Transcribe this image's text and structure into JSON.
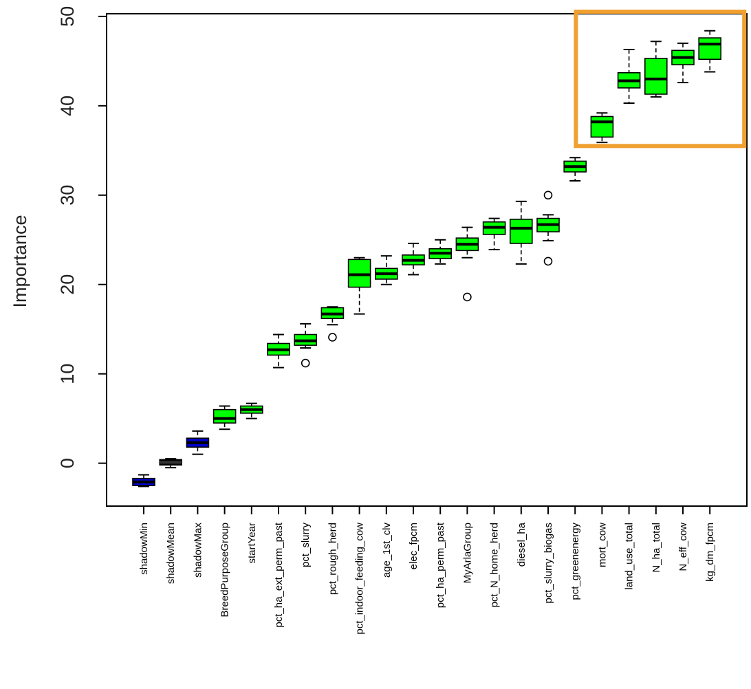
{
  "chart_data": {
    "type": "boxplot",
    "title": "",
    "xlabel": "",
    "ylabel": "Importance",
    "ylim": [
      -4.8,
      50.3
    ],
    "yticks": [
      0,
      10,
      20,
      30,
      40,
      50
    ],
    "grid": false,
    "legend": "none",
    "colors": {
      "shadow": "#0000cc",
      "shadow_mean": "#000000",
      "confirmed": "#00ff00",
      "highlight": "#f0a030"
    },
    "highlight_box": {
      "from_category": "mort_cow",
      "to_category": "kg_dm_fpcm",
      "ymin": 35.5,
      "ymax": 50.3
    },
    "categories": [
      "shadowMin",
      "shadowMean",
      "shadowMax",
      "BreedPurposeGroup",
      "startYear",
      "pct_ha_ext_perm_past",
      "pct_slurry",
      "pct_rough_herd",
      "pct_indoor_feeding_cow",
      "age_1st_clv",
      "elec_fpcm",
      "pct_ha_perm_past",
      "MyArlaGroup",
      "pct_N_home_herd",
      "diesel_ha",
      "pct_slurry_biogas",
      "pct_greenenergy",
      "mort_cow",
      "land_use_total",
      "N_ha_total",
      "N_eff_cow",
      "kg_dm_fpcm"
    ],
    "boxes": [
      {
        "category": "shadowMin",
        "min": -2.6,
        "q1": -2.5,
        "median": -2.1,
        "q3": -1.7,
        "max": -1.3,
        "outliers": [],
        "color": "#0000cc"
      },
      {
        "category": "shadowMean",
        "min": -0.5,
        "q1": -0.2,
        "median": 0.1,
        "q3": 0.4,
        "max": 0.5,
        "outliers": [],
        "color": "#000000"
      },
      {
        "category": "shadowMax",
        "min": 1.0,
        "q1": 1.8,
        "median": 2.3,
        "q3": 2.8,
        "max": 3.6,
        "outliers": [],
        "color": "#0000cc"
      },
      {
        "category": "BreedPurposeGroup",
        "min": 3.8,
        "q1": 4.5,
        "median": 5.0,
        "q3": 6.0,
        "max": 6.4,
        "outliers": [],
        "color": "#00ff00"
      },
      {
        "category": "startYear",
        "min": 5.0,
        "q1": 5.6,
        "median": 6.0,
        "q3": 6.4,
        "max": 6.7,
        "outliers": [],
        "color": "#00ff00"
      },
      {
        "category": "pct_ha_ext_perm_past",
        "min": 10.7,
        "q1": 12.1,
        "median": 12.7,
        "q3": 13.4,
        "max": 14.4,
        "outliers": [],
        "color": "#00ff00"
      },
      {
        "category": "pct_slurry",
        "min": 12.9,
        "q1": 13.2,
        "median": 13.7,
        "q3": 14.4,
        "max": 15.6,
        "outliers": [
          11.2
        ],
        "color": "#00ff00"
      },
      {
        "category": "pct_rough_herd",
        "min": 15.5,
        "q1": 16.2,
        "median": 16.7,
        "q3": 17.4,
        "max": 17.5,
        "outliers": [
          14.1
        ],
        "color": "#00ff00"
      },
      {
        "category": "pct_indoor_feeding_cow",
        "min": 16.7,
        "q1": 19.7,
        "median": 21.1,
        "q3": 22.8,
        "max": 23.0,
        "outliers": [],
        "color": "#00ff00"
      },
      {
        "category": "age_1st_clv",
        "min": 20.0,
        "q1": 20.6,
        "median": 21.2,
        "q3": 21.8,
        "max": 23.2,
        "outliers": [],
        "color": "#00ff00"
      },
      {
        "category": "elec_fpcm",
        "min": 21.1,
        "q1": 22.2,
        "median": 22.7,
        "q3": 23.3,
        "max": 24.6,
        "outliers": [],
        "color": "#00ff00"
      },
      {
        "category": "pct_ha_perm_past",
        "min": 22.3,
        "q1": 22.9,
        "median": 23.5,
        "q3": 24.0,
        "max": 25.0,
        "outliers": [],
        "color": "#00ff00"
      },
      {
        "category": "MyArlaGroup",
        "min": 23.0,
        "q1": 23.8,
        "median": 24.5,
        "q3": 25.2,
        "max": 26.4,
        "outliers": [
          18.6
        ],
        "color": "#00ff00"
      },
      {
        "category": "pct_N_home_herd",
        "min": 23.9,
        "q1": 25.6,
        "median": 26.4,
        "q3": 27.0,
        "max": 27.4,
        "outliers": [],
        "color": "#00ff00"
      },
      {
        "category": "diesel_ha",
        "min": 22.3,
        "q1": 24.6,
        "median": 26.3,
        "q3": 27.3,
        "max": 29.3,
        "outliers": [],
        "color": "#00ff00"
      },
      {
        "category": "pct_slurry_biogas",
        "min": 24.9,
        "q1": 25.9,
        "median": 26.7,
        "q3": 27.4,
        "max": 27.8,
        "outliers": [
          30.0,
          22.6
        ],
        "color": "#00ff00"
      },
      {
        "category": "pct_greenenergy",
        "min": 31.6,
        "q1": 32.6,
        "median": 33.2,
        "q3": 33.8,
        "max": 34.2,
        "outliers": [],
        "color": "#00ff00"
      },
      {
        "category": "mort_cow",
        "min": 35.9,
        "q1": 36.5,
        "median": 38.2,
        "q3": 38.8,
        "max": 39.2,
        "outliers": [],
        "color": "#00ff00"
      },
      {
        "category": "land_use_total",
        "min": 40.3,
        "q1": 42.0,
        "median": 42.8,
        "q3": 43.7,
        "max": 46.3,
        "outliers": [],
        "color": "#00ff00"
      },
      {
        "category": "N_ha_total",
        "min": 41.0,
        "q1": 41.3,
        "median": 43.0,
        "q3": 45.3,
        "max": 47.2,
        "outliers": [],
        "color": "#00ff00"
      },
      {
        "category": "N_eff_cow",
        "min": 42.6,
        "q1": 44.6,
        "median": 45.4,
        "q3": 46.2,
        "max": 47.0,
        "outliers": [],
        "color": "#00ff00"
      },
      {
        "category": "kg_dm_fpcm",
        "min": 43.8,
        "q1": 45.2,
        "median": 46.9,
        "q3": 47.6,
        "max": 48.4,
        "outliers": [],
        "color": "#00ff00"
      }
    ]
  }
}
